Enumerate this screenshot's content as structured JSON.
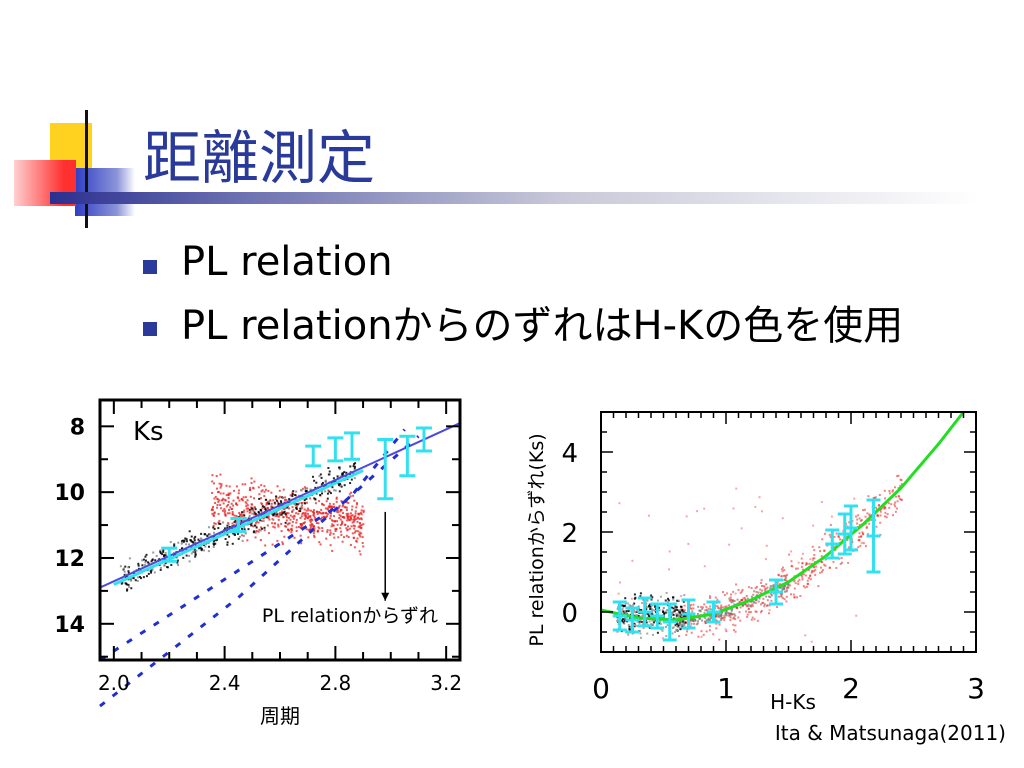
{
  "slide": {
    "title": "距離測定",
    "bullets": [
      "PL relation",
      "PL relationからのずれはH-Kの色を使用"
    ]
  },
  "colors": {
    "title": "#2a3a9a",
    "bullet": "#2a3a9a",
    "deco_yellow": "#ffd21f",
    "deco_blue": "#2f3fc4",
    "deco_red": "#ff3030",
    "agb_red": "#e82020",
    "star_black": "#000000",
    "fit_blue": "#1f2fd0",
    "errbar_cyan": "#33e0f0",
    "fit_green": "#22dd22"
  },
  "chart_data": [
    {
      "type": "scatter",
      "name": "left",
      "panel_label": "Ks",
      "xlabel": "周期",
      "ylabel": "",
      "xlim": [
        1.95,
        3.25
      ],
      "ylim": [
        15.1,
        7.2
      ],
      "xticks": [
        "2.0",
        "2.4",
        "2.8",
        "3.2"
      ],
      "yticks": [
        "8",
        "10",
        "12",
        "14"
      ],
      "annotation": "PL relationからずれ",
      "fit_line": [
        [
          1.95,
          12.9
        ],
        [
          3.25,
          7.9
        ]
      ],
      "dashed_lines": [
        [
          [
            1.95,
            15.1
          ],
          [
            2.85,
            10.2
          ],
          [
            3.05,
            8.1
          ]
        ],
        [
          [
            1.95,
            16.5
          ],
          [
            2.45,
            13.2
          ],
          [
            2.75,
            10.9
          ],
          [
            3.1,
            8.3
          ]
        ]
      ],
      "error_bars": [
        {
          "x": 2.72,
          "y": 8.9,
          "err": 0.3
        },
        {
          "x": 2.8,
          "y": 8.7,
          "err": 0.35
        },
        {
          "x": 2.86,
          "y": 8.6,
          "err": 0.4
        },
        {
          "x": 2.98,
          "y": 9.3,
          "err": 0.9
        },
        {
          "x": 3.06,
          "y": 8.9,
          "err": 0.6
        },
        {
          "x": 3.12,
          "y": 8.4,
          "err": 0.35
        },
        {
          "x": 2.45,
          "y": 11.0,
          "err": 0.2
        },
        {
          "x": 2.2,
          "y": 11.9,
          "err": 0.2
        }
      ]
    },
    {
      "type": "scatter",
      "name": "right",
      "xlabel": "H-Ks",
      "ylabel": "PL relationからずれ(Ks)",
      "xlim": [
        0,
        3
      ],
      "ylim": [
        -1,
        5
      ],
      "xticks": [
        "0",
        "1",
        "2",
        "3"
      ],
      "yticks": [
        "0",
        "2",
        "4"
      ],
      "fit_curve": [
        [
          0.0,
          0.05
        ],
        [
          0.3,
          -0.15
        ],
        [
          0.6,
          -0.2
        ],
        [
          0.9,
          -0.05
        ],
        [
          1.2,
          0.3
        ],
        [
          1.5,
          0.75
        ],
        [
          1.8,
          1.4
        ],
        [
          2.1,
          2.2
        ],
        [
          2.4,
          3.1
        ],
        [
          2.7,
          4.2
        ],
        [
          2.9,
          5.0
        ]
      ],
      "error_bars": [
        {
          "x": 0.15,
          "y": -0.1,
          "err": 0.35
        },
        {
          "x": 0.25,
          "y": -0.2,
          "err": 0.3
        },
        {
          "x": 0.35,
          "y": 0.0,
          "err": 0.35
        },
        {
          "x": 0.45,
          "y": -0.1,
          "err": 0.3
        },
        {
          "x": 0.55,
          "y": -0.25,
          "err": 0.45
        },
        {
          "x": 0.7,
          "y": -0.05,
          "err": 0.35
        },
        {
          "x": 0.9,
          "y": 0.0,
          "err": 0.25
        },
        {
          "x": 1.4,
          "y": 0.5,
          "err": 0.3
        },
        {
          "x": 1.85,
          "y": 1.7,
          "err": 0.35
        },
        {
          "x": 1.95,
          "y": 1.95,
          "err": 0.5
        },
        {
          "x": 2.0,
          "y": 2.1,
          "err": 0.55
        },
        {
          "x": 2.18,
          "y": 1.9,
          "err": 0.9
        }
      ]
    }
  ],
  "credit": "Ita & Matsunaga(2011)"
}
